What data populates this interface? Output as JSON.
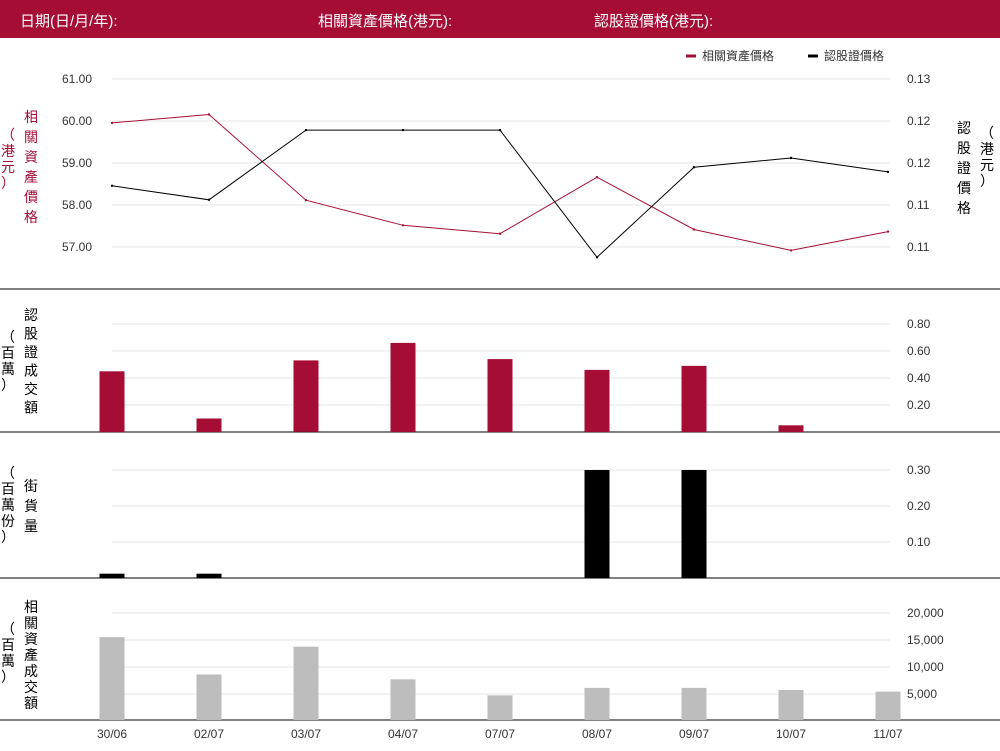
{
  "header": {
    "date_label": "日期(日/月/年):",
    "asset_price_label": "相關資產價格(港元):",
    "warrant_price_label": "認股證價格(港元):"
  },
  "colors": {
    "brand": "#a50d35",
    "asset_line": "#a50d35",
    "warrant_line": "#000000",
    "warrant_volume_bar": "#a50d35",
    "outstanding_bar": "#000000",
    "asset_turnover_bar": "#bdbdbd",
    "grid": "#e6e6e6"
  },
  "chart_data": [
    {
      "type": "line",
      "categories": [
        "30/06",
        "02/07",
        "03/07",
        "04/07",
        "07/07",
        "08/07",
        "09/07",
        "10/07",
        "11/07"
      ],
      "left_axis_label": "相關資產價格",
      "left_axis_unit": "（港元）",
      "right_axis_label": "認股證價格",
      "right_axis_unit": "（港元）",
      "left_ticks": [
        "61.00",
        "60.00",
        "59.00",
        "58.00",
        "57.00"
      ],
      "right_ticks": [
        "0.13",
        "0.12",
        "0.12",
        "0.11",
        "0.11"
      ],
      "legend": [
        "相關資產價格",
        "認股證價格"
      ],
      "legend_position": "top-right",
      "series": [
        {
          "name": "相關資產價格",
          "axis": "left",
          "values": [
            59.95,
            60.15,
            58.1,
            57.5,
            57.3,
            58.65,
            57.4,
            56.9,
            57.35
          ]
        },
        {
          "name": "認股證價格",
          "axis": "right",
          "values": [
            0.1185,
            0.117,
            0.1245,
            0.1245,
            0.1245,
            0.1108,
            0.1205,
            0.1215,
            0.12
          ]
        }
      ],
      "left_ylim": [
        56.0,
        61.0
      ],
      "right_ylim": [
        0.1075,
        0.13
      ]
    },
    {
      "type": "bar",
      "categories": [
        "30/06",
        "02/07",
        "03/07",
        "04/07",
        "07/07",
        "08/07",
        "09/07",
        "10/07",
        "11/07"
      ],
      "axis_label": "認股證成交額",
      "axis_unit": "（百萬）",
      "ticks": [
        "0.80",
        "0.60",
        "0.40",
        "0.20"
      ],
      "values": [
        0.45,
        0.1,
        0.53,
        0.66,
        0.54,
        0.46,
        0.49,
        0.05,
        0
      ],
      "ylim": [
        0,
        0.9
      ]
    },
    {
      "type": "bar",
      "categories": [
        "30/06",
        "02/07",
        "03/07",
        "04/07",
        "07/07",
        "08/07",
        "09/07",
        "10/07",
        "11/07"
      ],
      "axis_label": "街貨量",
      "axis_unit": "（百萬份）",
      "ticks": [
        "0.30",
        "0.20",
        "0.10"
      ],
      "values": [
        0.012,
        0.012,
        0,
        0,
        0,
        0.3,
        0.3,
        0,
        0
      ],
      "ylim": [
        0,
        0.3
      ]
    },
    {
      "type": "bar",
      "categories": [
        "30/06",
        "02/07",
        "03/07",
        "04/07",
        "07/07",
        "08/07",
        "09/07",
        "10/07",
        "11/07"
      ],
      "axis_label": "相關資產成交額",
      "axis_unit": "（百萬）",
      "ticks": [
        "20,000",
        "15,000",
        "10,000",
        "5,000"
      ],
      "values": [
        15500,
        8500,
        13700,
        7600,
        4600,
        6000,
        6000,
        5600,
        5300
      ],
      "ylim": [
        0,
        20000
      ]
    }
  ]
}
